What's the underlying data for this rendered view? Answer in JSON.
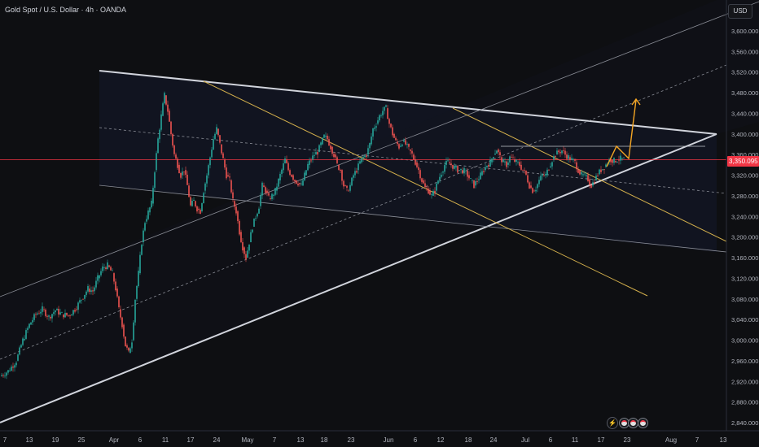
{
  "header": {
    "title": "Gold Spot / U.S. Dollar · 4h · OANDA"
  },
  "toolbar": {
    "currency_button": "USD"
  },
  "chart_data": {
    "type": "candlestick",
    "y_ticks": [
      "3,600.000",
      "3,560.000",
      "3,520.000",
      "3,480.000",
      "3,440.000",
      "3,400.000",
      "3,360.000",
      "3,320.000",
      "3,280.000",
      "3,240.000",
      "3,200.000",
      "3,160.000",
      "3,120.000",
      "3,080.000",
      "3,040.000",
      "3,000.000",
      "2,960.000",
      "2,920.000",
      "2,880.000",
      "2,840.000"
    ],
    "ylim": [
      2840,
      3600
    ],
    "x_ticks": [
      "7",
      "13",
      "19",
      "25",
      "Apr",
      "6",
      "11",
      "17",
      "24",
      "May",
      "7",
      "13",
      "18",
      "23",
      "Jun",
      "6",
      "12",
      "18",
      "24",
      "Jul",
      "6",
      "11",
      "17",
      "23",
      "Aug",
      "7",
      "13"
    ],
    "current_price_label": "3,350.095",
    "current_price": 3350.095,
    "colors": {
      "up": "#26a69a",
      "down": "#ef5350",
      "price_line": "#f23645",
      "channel": "#d1d4dc",
      "fib": "#d4b04c",
      "projection": "#f5a623",
      "background": "#0e0f12"
    },
    "close_path": [
      [
        0,
        2930
      ],
      [
        10,
        2940
      ],
      [
        20,
        2960
      ],
      [
        28,
        3000
      ],
      [
        36,
        3030
      ],
      [
        44,
        3050
      ],
      [
        52,
        3060
      ],
      [
        60,
        3045
      ],
      [
        68,
        3058
      ],
      [
        76,
        3050
      ],
      [
        84,
        3048
      ],
      [
        92,
        3060
      ],
      [
        100,
        3080
      ],
      [
        108,
        3100
      ],
      [
        114,
        3095
      ],
      [
        120,
        3120
      ],
      [
        126,
        3140
      ],
      [
        132,
        3145
      ],
      [
        138,
        3130
      ],
      [
        142,
        3100
      ],
      [
        146,
        3060
      ],
      [
        150,
        3030
      ],
      [
        154,
        2990
      ],
      [
        158,
        2975
      ],
      [
        162,
        3000
      ],
      [
        166,
        3080
      ],
      [
        170,
        3130
      ],
      [
        174,
        3190
      ],
      [
        178,
        3230
      ],
      [
        182,
        3248
      ],
      [
        186,
        3265
      ],
      [
        190,
        3330
      ],
      [
        194,
        3390
      ],
      [
        198,
        3435
      ],
      [
        202,
        3475
      ],
      [
        206,
        3445
      ],
      [
        210,
        3400
      ],
      [
        214,
        3360
      ],
      [
        218,
        3340
      ],
      [
        222,
        3320
      ],
      [
        226,
        3330
      ],
      [
        230,
        3300
      ],
      [
        234,
        3260
      ],
      [
        238,
        3270
      ],
      [
        242,
        3255
      ],
      [
        246,
        3250
      ],
      [
        250,
        3290
      ],
      [
        254,
        3320
      ],
      [
        258,
        3355
      ],
      [
        262,
        3390
      ],
      [
        266,
        3410
      ],
      [
        270,
        3380
      ],
      [
        274,
        3350
      ],
      [
        278,
        3320
      ],
      [
        282,
        3310
      ],
      [
        286,
        3270
      ],
      [
        290,
        3250
      ],
      [
        294,
        3210
      ],
      [
        298,
        3180
      ],
      [
        302,
        3160
      ],
      [
        306,
        3190
      ],
      [
        310,
        3220
      ],
      [
        314,
        3240
      ],
      [
        318,
        3260
      ],
      [
        322,
        3300
      ],
      [
        326,
        3290
      ],
      [
        330,
        3275
      ],
      [
        334,
        3280
      ],
      [
        338,
        3290
      ],
      [
        342,
        3310
      ],
      [
        346,
        3330
      ],
      [
        350,
        3350
      ],
      [
        354,
        3330
      ],
      [
        358,
        3320
      ],
      [
        362,
        3310
      ],
      [
        366,
        3305
      ],
      [
        370,
        3300
      ],
      [
        374,
        3320
      ],
      [
        378,
        3340
      ],
      [
        382,
        3350
      ],
      [
        386,
        3360
      ],
      [
        390,
        3365
      ],
      [
        394,
        3380
      ],
      [
        398,
        3395
      ],
      [
        402,
        3390
      ],
      [
        406,
        3375
      ],
      [
        410,
        3360
      ],
      [
        414,
        3340
      ],
      [
        418,
        3330
      ],
      [
        422,
        3300
      ],
      [
        426,
        3290
      ],
      [
        430,
        3300
      ],
      [
        434,
        3320
      ],
      [
        438,
        3330
      ],
      [
        442,
        3345
      ],
      [
        446,
        3355
      ],
      [
        450,
        3360
      ],
      [
        454,
        3380
      ],
      [
        458,
        3410
      ],
      [
        462,
        3420
      ],
      [
        466,
        3435
      ],
      [
        470,
        3445
      ],
      [
        474,
        3450
      ],
      [
        478,
        3420
      ],
      [
        482,
        3400
      ],
      [
        486,
        3385
      ],
      [
        490,
        3375
      ],
      [
        494,
        3385
      ],
      [
        498,
        3380
      ],
      [
        502,
        3370
      ],
      [
        506,
        3360
      ],
      [
        510,
        3345
      ],
      [
        514,
        3330
      ],
      [
        518,
        3310
      ],
      [
        522,
        3295
      ],
      [
        526,
        3290
      ],
      [
        530,
        3280
      ],
      [
        534,
        3290
      ],
      [
        538,
        3310
      ],
      [
        542,
        3325
      ],
      [
        546,
        3340
      ],
      [
        550,
        3345
      ],
      [
        554,
        3340
      ],
      [
        558,
        3335
      ],
      [
        562,
        3330
      ],
      [
        566,
        3330
      ],
      [
        570,
        3328
      ],
      [
        574,
        3320
      ],
      [
        578,
        3310
      ],
      [
        582,
        3300
      ],
      [
        586,
        3310
      ],
      [
        590,
        3320
      ],
      [
        594,
        3330
      ],
      [
        598,
        3340
      ],
      [
        602,
        3345
      ],
      [
        606,
        3360
      ],
      [
        610,
        3370
      ],
      [
        614,
        3355
      ],
      [
        618,
        3345
      ],
      [
        622,
        3340
      ],
      [
        626,
        3355
      ],
      [
        630,
        3350
      ],
      [
        634,
        3345
      ],
      [
        638,
        3340
      ],
      [
        642,
        3330
      ],
      [
        646,
        3320
      ],
      [
        650,
        3300
      ],
      [
        654,
        3290
      ],
      [
        658,
        3295
      ],
      [
        662,
        3310
      ],
      [
        666,
        3320
      ],
      [
        670,
        3320
      ],
      [
        674,
        3335
      ],
      [
        678,
        3350
      ],
      [
        682,
        3360
      ],
      [
        686,
        3365
      ],
      [
        690,
        3368
      ],
      [
        694,
        3360
      ],
      [
        698,
        3355
      ],
      [
        702,
        3350
      ],
      [
        706,
        3345
      ],
      [
        710,
        3330
      ],
      [
        714,
        3320
      ],
      [
        718,
        3318
      ],
      [
        722,
        3312
      ],
      [
        726,
        3300
      ],
      [
        730,
        3310
      ],
      [
        734,
        3322
      ],
      [
        738,
        3330
      ],
      [
        742,
        3336
      ],
      [
        746,
        3345
      ],
      [
        750,
        3350
      ],
      [
        754,
        3348
      ],
      [
        758,
        3350
      ],
      [
        762,
        3352
      ],
      [
        766,
        3350
      ]
    ]
  }
}
